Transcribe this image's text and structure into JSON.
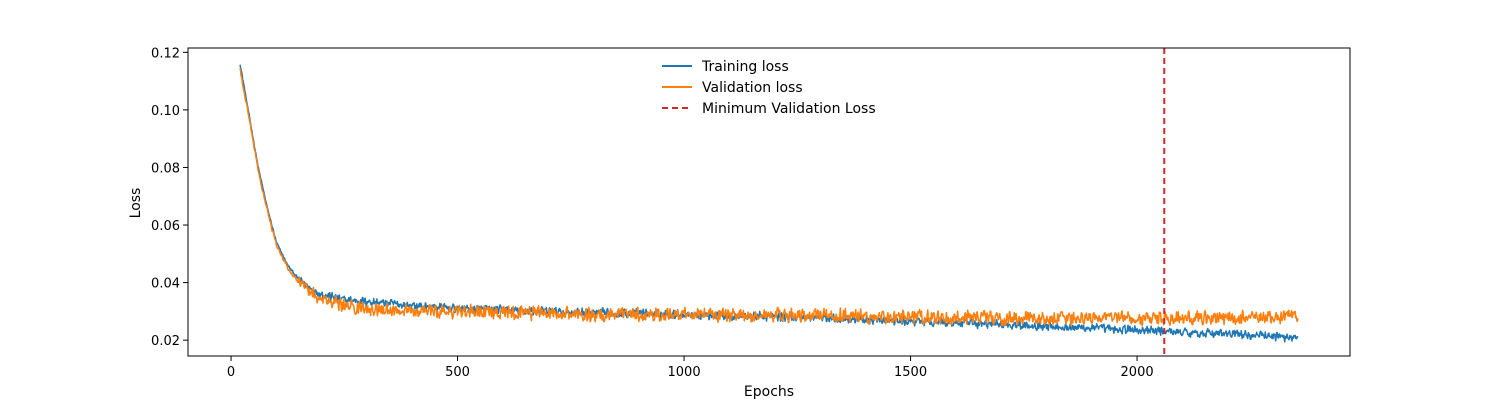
{
  "chart_data": {
    "type": "line",
    "title": "",
    "xlabel": "Epochs",
    "ylabel": "Loss",
    "xlim": [
      -95,
      2470
    ],
    "ylim": [
      0.0145,
      0.1215
    ],
    "x_ticks": [
      0,
      500,
      1000,
      1500,
      2000
    ],
    "x_tick_labels": [
      "0",
      "500",
      "1000",
      "1500",
      "2000"
    ],
    "y_ticks": [
      0.02,
      0.04,
      0.06,
      0.08,
      0.1,
      0.12
    ],
    "y_tick_labels": [
      "0.02",
      "0.04",
      "0.06",
      "0.08",
      "0.10",
      "0.12"
    ],
    "grid": false,
    "legend_position": "top-center",
    "x_range": [
      20,
      2355
    ],
    "series": [
      {
        "name": "Training loss",
        "color": "#1f77b4",
        "style": "solid",
        "anchors": [
          [
            20,
            0.116
          ],
          [
            40,
            0.098
          ],
          [
            60,
            0.08
          ],
          [
            80,
            0.066
          ],
          [
            100,
            0.054
          ],
          [
            125,
            0.046
          ],
          [
            150,
            0.041
          ],
          [
            175,
            0.038
          ],
          [
            200,
            0.036
          ],
          [
            250,
            0.034
          ],
          [
            300,
            0.0335
          ],
          [
            400,
            0.032
          ],
          [
            500,
            0.031
          ],
          [
            600,
            0.0305
          ],
          [
            700,
            0.03
          ],
          [
            800,
            0.0295
          ],
          [
            900,
            0.0293
          ],
          [
            1000,
            0.029
          ],
          [
            1100,
            0.0285
          ],
          [
            1200,
            0.0282
          ],
          [
            1300,
            0.0278
          ],
          [
            1400,
            0.0272
          ],
          [
            1500,
            0.0265
          ],
          [
            1600,
            0.026
          ],
          [
            1700,
            0.0255
          ],
          [
            1800,
            0.025
          ],
          [
            1900,
            0.0242
          ],
          [
            2000,
            0.0235
          ],
          [
            2100,
            0.0228
          ],
          [
            2200,
            0.0222
          ],
          [
            2355,
            0.021
          ]
        ],
        "noise": 0.0018
      },
      {
        "name": "Validation loss",
        "color": "#ff7f0e",
        "style": "solid",
        "anchors": [
          [
            20,
            0.114
          ],
          [
            40,
            0.097
          ],
          [
            60,
            0.079
          ],
          [
            80,
            0.065
          ],
          [
            100,
            0.053
          ],
          [
            125,
            0.045
          ],
          [
            150,
            0.04
          ],
          [
            175,
            0.037
          ],
          [
            200,
            0.034
          ],
          [
            250,
            0.032
          ],
          [
            300,
            0.031
          ],
          [
            400,
            0.03
          ],
          [
            500,
            0.03
          ],
          [
            600,
            0.0295
          ],
          [
            700,
            0.0295
          ],
          [
            800,
            0.029
          ],
          [
            900,
            0.029
          ],
          [
            1000,
            0.029
          ],
          [
            1100,
            0.0288
          ],
          [
            1200,
            0.0288
          ],
          [
            1300,
            0.0285
          ],
          [
            1400,
            0.0283
          ],
          [
            1500,
            0.028
          ],
          [
            1600,
            0.028
          ],
          [
            1700,
            0.0278
          ],
          [
            1800,
            0.0278
          ],
          [
            1900,
            0.0276
          ],
          [
            2000,
            0.0276
          ],
          [
            2100,
            0.0275
          ],
          [
            2200,
            0.0278
          ],
          [
            2355,
            0.028
          ]
        ],
        "noise": 0.0028
      }
    ],
    "vline": {
      "name": "Minimum Validation Loss",
      "x": 2060,
      "color": "#d62728",
      "style": "dashed"
    }
  }
}
